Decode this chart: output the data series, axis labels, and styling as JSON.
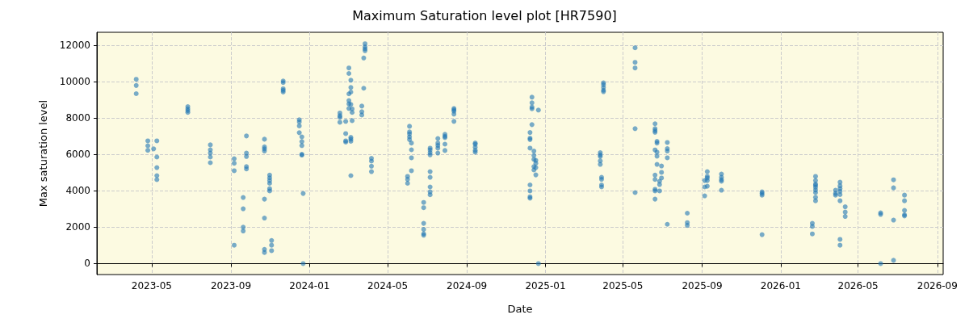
{
  "chart_data": {
    "type": "scatter",
    "title": "Maximum Saturation level plot [HR7590]",
    "xlabel": "Date",
    "ylabel": "Max saturation level",
    "xlim": [
      "2023-02-05",
      "2026-09-10"
    ],
    "xticks": [
      "2023-05",
      "2023-09",
      "2024-01",
      "2024-05",
      "2024-09",
      "2025-01",
      "2025-05",
      "2025-09",
      "2026-01",
      "2026-05",
      "2026-09"
    ],
    "ylim": [
      -600,
      12700
    ],
    "yticks": [
      0,
      2000,
      4000,
      6000,
      8000,
      10000,
      12000
    ],
    "grid": true,
    "marker": "circle",
    "series": [
      {
        "color": "#1f77b4",
        "x": [
          "2023-04-07",
          "2023-04-07",
          "2023-04-07",
          "2023-04-25",
          "2023-04-25",
          "2023-04-25",
          "2023-05-04",
          "2023-05-09",
          "2023-05-09",
          "2023-05-09",
          "2023-05-09",
          "2023-05-09",
          "2023-06-26",
          "2023-06-26",
          "2023-06-26",
          "2023-06-26",
          "2023-07-31",
          "2023-07-31",
          "2023-07-31",
          "2023-07-31",
          "2023-07-31",
          "2023-09-06",
          "2023-09-06",
          "2023-09-06",
          "2023-09-06",
          "2023-09-20",
          "2023-09-20",
          "2023-09-20",
          "2023-09-20",
          "2023-09-25",
          "2023-09-25",
          "2023-09-25",
          "2023-09-25",
          "2023-09-25",
          "2023-10-23",
          "2023-10-23",
          "2023-10-23",
          "2023-10-23",
          "2023-10-23",
          "2023-10-23",
          "2023-10-23",
          "2023-10-23",
          "2023-10-31",
          "2023-10-31",
          "2023-10-31",
          "2023-10-31",
          "2023-10-31",
          "2023-10-31",
          "2023-11-03",
          "2023-11-03",
          "2023-11-03",
          "2023-11-21",
          "2023-11-21",
          "2023-11-21",
          "2023-11-21",
          "2023-11-21",
          "2023-12-16",
          "2023-12-16",
          "2023-12-16",
          "2023-12-16",
          "2023-12-20",
          "2023-12-20",
          "2023-12-20",
          "2023-12-20",
          "2023-12-20",
          "2023-12-22",
          "2023-12-22",
          "2024-02-17",
          "2024-02-17",
          "2024-02-17",
          "2024-02-17",
          "2024-02-26",
          "2024-02-26",
          "2024-02-26",
          "2024-02-26",
          "2024-03-02",
          "2024-03-02",
          "2024-03-02",
          "2024-03-02",
          "2024-03-02",
          "2024-03-02",
          "2024-03-05",
          "2024-03-05",
          "2024-03-05",
          "2024-03-05",
          "2024-03-05",
          "2024-03-05",
          "2024-03-05",
          "2024-03-05",
          "2024-03-07",
          "2024-03-07",
          "2024-03-07",
          "2024-03-22",
          "2024-03-22",
          "2024-03-22",
          "2024-03-25",
          "2024-03-25",
          "2024-03-27",
          "2024-03-27",
          "2024-03-27",
          "2024-03-27",
          "2024-04-06",
          "2024-04-06",
          "2024-04-06",
          "2024-04-06",
          "2024-06-01",
          "2024-06-01",
          "2024-06-01",
          "2024-06-04",
          "2024-06-04",
          "2024-06-04",
          "2024-06-04",
          "2024-06-04",
          "2024-06-07",
          "2024-06-07",
          "2024-06-07",
          "2024-06-07",
          "2024-06-26",
          "2024-06-26",
          "2024-06-26",
          "2024-06-26",
          "2024-06-26",
          "2024-06-26",
          "2024-07-06",
          "2024-07-06",
          "2024-07-06",
          "2024-07-06",
          "2024-07-06",
          "2024-07-06",
          "2024-07-06",
          "2024-07-06",
          "2024-07-06",
          "2024-07-18",
          "2024-07-18",
          "2024-07-18",
          "2024-07-18",
          "2024-07-18",
          "2024-07-29",
          "2024-07-29",
          "2024-07-29",
          "2024-07-29",
          "2024-07-29",
          "2024-08-12",
          "2024-08-12",
          "2024-08-12",
          "2024-08-12",
          "2024-08-12",
          "2024-09-14",
          "2024-09-14",
          "2024-09-14",
          "2024-09-14",
          "2024-09-14",
          "2024-12-08",
          "2024-12-08",
          "2024-12-08",
          "2024-12-08",
          "2024-12-08",
          "2024-12-08",
          "2024-12-08",
          "2024-12-08",
          "2024-12-11",
          "2024-12-11",
          "2024-12-11",
          "2024-12-11",
          "2024-12-11",
          "2024-12-14",
          "2024-12-14",
          "2024-12-14",
          "2024-12-14",
          "2024-12-14",
          "2024-12-17",
          "2024-12-17",
          "2024-12-17",
          "2024-12-17",
          "2024-12-21",
          "2024-12-21",
          "2025-03-27",
          "2025-03-27",
          "2025-03-27",
          "2025-03-27",
          "2025-03-27",
          "2025-03-29",
          "2025-03-29",
          "2025-03-29",
          "2025-03-29",
          "2025-04-01",
          "2025-04-01",
          "2025-04-01",
          "2025-04-01",
          "2025-04-01",
          "2025-05-20",
          "2025-05-20",
          "2025-05-20",
          "2025-05-20",
          "2025-05-20",
          "2025-06-20",
          "2025-06-20",
          "2025-06-20",
          "2025-06-20",
          "2025-06-20",
          "2025-06-20",
          "2025-06-20",
          "2025-06-20",
          "2025-06-20",
          "2025-06-20",
          "2025-06-23",
          "2025-06-23",
          "2025-06-23",
          "2025-06-23",
          "2025-06-23",
          "2025-06-27",
          "2025-06-27",
          "2025-06-27",
          "2025-06-30",
          "2025-06-30",
          "2025-06-30",
          "2025-07-09",
          "2025-07-09",
          "2025-07-09",
          "2025-07-09",
          "2025-07-09",
          "2025-08-09",
          "2025-08-09",
          "2025-08-09",
          "2025-09-05",
          "2025-09-05",
          "2025-09-05",
          "2025-09-09",
          "2025-09-09",
          "2025-09-09",
          "2025-09-09",
          "2025-09-09",
          "2025-10-01",
          "2025-10-01",
          "2025-10-01",
          "2025-10-01",
          "2025-10-01",
          "2025-12-03",
          "2025-12-03",
          "2025-12-03",
          "2025-12-03",
          "2026-02-19",
          "2026-02-19",
          "2026-02-19",
          "2026-02-24",
          "2026-02-24",
          "2026-02-24",
          "2026-02-24",
          "2026-02-24",
          "2026-02-24",
          "2026-02-24",
          "2026-02-24",
          "2026-02-24",
          "2026-03-27",
          "2026-03-27",
          "2026-03-27",
          "2026-04-03",
          "2026-04-03",
          "2026-04-03",
          "2026-04-03",
          "2026-04-03",
          "2026-04-03",
          "2026-04-03",
          "2026-04-03",
          "2026-04-11",
          "2026-04-11",
          "2026-04-11",
          "2026-06-05",
          "2026-06-05",
          "2026-06-05",
          "2026-06-25",
          "2026-06-25",
          "2026-06-25",
          "2026-06-25",
          "2026-07-12",
          "2026-07-12",
          "2026-07-12",
          "2026-07-12",
          "2026-07-12"
        ],
        "values": [
          10120,
          9780,
          9330,
          6740,
          6470,
          6220,
          6300,
          6740,
          5850,
          5270,
          4830,
          4610,
          8620,
          8500,
          8400,
          8300,
          6520,
          6250,
          6070,
          5850,
          5540,
          5760,
          5510,
          5100,
          1010,
          3630,
          3010,
          2000,
          1790,
          7010,
          6070,
          5880,
          5330,
          5200,
          6830,
          6410,
          6300,
          6180,
          3540,
          2500,
          780,
          610,
          4860,
          4710,
          4560,
          4410,
          4120,
          3990,
          1270,
          1010,
          710,
          10030,
          9940,
          9600,
          9510,
          9420,
          7900,
          7780,
          7560,
          7190,
          6960,
          6700,
          6480,
          6000,
          5960,
          3850,
          0,
          8270,
          8120,
          8030,
          7760,
          7810,
          7140,
          6740,
          6670,
          10740,
          10440,
          9320,
          8950,
          8770,
          8520,
          10070,
          9670,
          9420,
          8740,
          6930,
          6830,
          6720,
          4830,
          8490,
          8300,
          7850,
          8650,
          8340,
          8160,
          11290,
          9630,
          12070,
          11900,
          11790,
          11690,
          5780,
          5630,
          5350,
          5050,
          4790,
          4630,
          4410,
          7540,
          7230,
          7120,
          6960,
          6810,
          6620,
          6250,
          5810,
          5100,
          3360,
          3070,
          2210,
          1880,
          1640,
          1560,
          6340,
          6240,
          6090,
          5970,
          5050,
          4740,
          4210,
          3940,
          3780,
          6870,
          6620,
          6490,
          6340,
          6070,
          7100,
          6990,
          6920,
          6560,
          6210,
          8520,
          8440,
          8370,
          8210,
          7810,
          6620,
          6550,
          6390,
          6220,
          6120,
          7200,
          6890,
          6810,
          6340,
          4320,
          3990,
          3670,
          3590,
          9140,
          8830,
          8590,
          8500,
          7630,
          6180,
          5940,
          5720,
          5330,
          5140,
          5670,
          5510,
          5270,
          4870,
          8430,
          0,
          6090,
          5970,
          5880,
          5640,
          5450,
          4740,
          4630,
          4320,
          4210,
          9930,
          9820,
          9670,
          9520,
          9440,
          11850,
          11050,
          10740,
          7410,
          3900,
          7680,
          7410,
          7300,
          7210,
          6240,
          4860,
          4620,
          4080,
          3990,
          3540,
          6710,
          6620,
          6120,
          5900,
          5450,
          4520,
          4340,
          3990,
          5360,
          5010,
          4700,
          6650,
          6310,
          6180,
          5810,
          2160,
          2770,
          2250,
          2100,
          4560,
          4210,
          3720,
          5050,
          4790,
          4700,
          4560,
          4250,
          4920,
          4740,
          4610,
          4520,
          4030,
          3940,
          3850,
          3760,
          1590,
          2210,
          2040,
          1630,
          4790,
          4560,
          4370,
          4300,
          4190,
          4040,
          3900,
          3640,
          3450,
          4030,
          3850,
          3760,
          4470,
          4270,
          4120,
          3970,
          3790,
          3450,
          1330,
          1010,
          3120,
          2830,
          2590,
          2790,
          2700,
          0,
          4600,
          4160,
          2390,
          180,
          3760,
          3450,
          2920,
          2680,
          2620
        ]
      }
    ]
  }
}
